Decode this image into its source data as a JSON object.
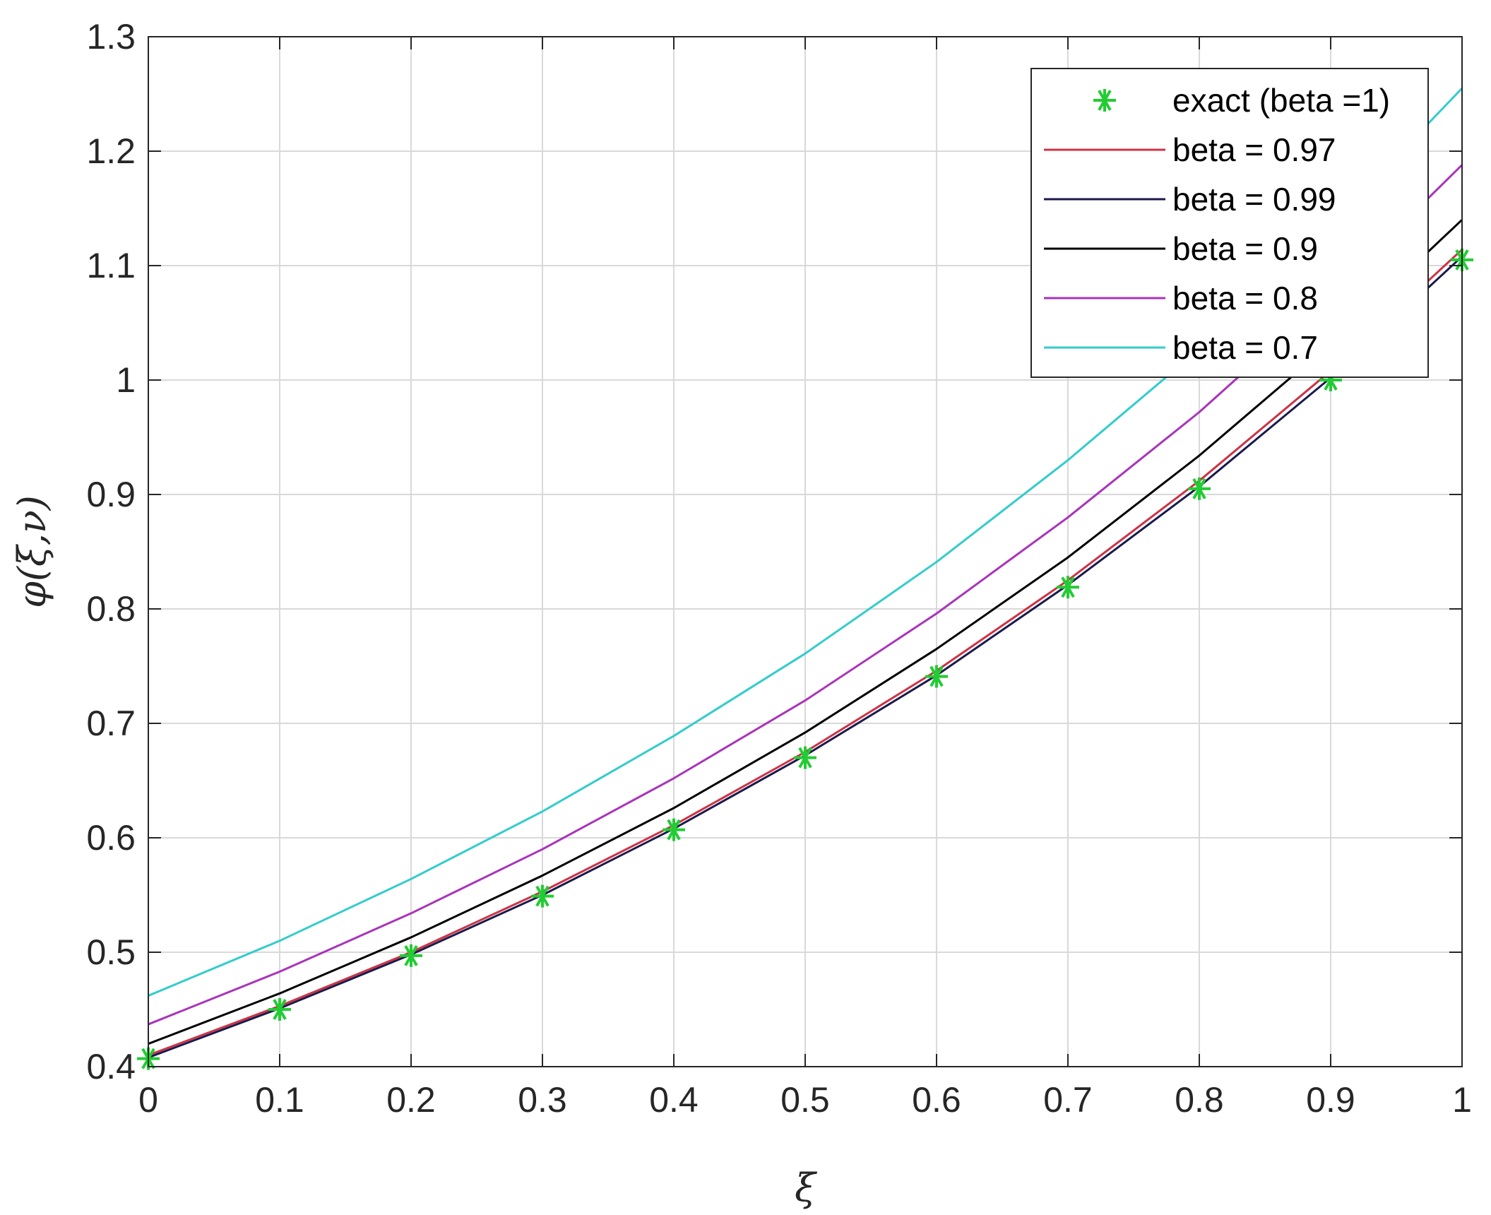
{
  "chart_data": {
    "type": "line",
    "title": "",
    "xlabel": "ξ",
    "ylabel": "φ(ξ,ν)",
    "xlim": [
      0,
      1
    ],
    "ylim": [
      0.4,
      1.3
    ],
    "grid": true,
    "legend_position": "top-right",
    "x_ticks": [
      "0",
      "0.1",
      "0.2",
      "0.3",
      "0.4",
      "0.5",
      "0.6",
      "0.7",
      "0.8",
      "0.9",
      "1"
    ],
    "y_ticks": [
      "0.4",
      "0.5",
      "0.6",
      "0.7",
      "0.8",
      "0.9",
      "1",
      "1.1",
      "1.2",
      "1.3"
    ],
    "x": [
      0,
      0.1,
      0.2,
      0.3,
      0.4,
      0.5,
      0.6,
      0.7,
      0.8,
      0.9,
      1.0
    ],
    "series": [
      {
        "name": "exact (beta =1)",
        "kind": "marker",
        "color": "#22cc33",
        "values": [
          0.407,
          0.45,
          0.497,
          0.549,
          0.607,
          0.67,
          0.741,
          0.819,
          0.905,
          1.0,
          1.105
        ]
      },
      {
        "name": "beta = 0.97",
        "kind": "line",
        "color": "#cc3344",
        "values": [
          0.41,
          0.453,
          0.5,
          0.553,
          0.611,
          0.675,
          0.746,
          0.825,
          0.912,
          1.008,
          1.114
        ]
      },
      {
        "name": "beta = 0.99",
        "kind": "line",
        "color": "#1a1a4d",
        "values": [
          0.408,
          0.451,
          0.498,
          0.55,
          0.608,
          0.672,
          0.742,
          0.821,
          0.907,
          1.002,
          1.108
        ]
      },
      {
        "name": "beta = 0.9",
        "kind": "line",
        "color": "#000000",
        "values": [
          0.42,
          0.464,
          0.513,
          0.567,
          0.626,
          0.692,
          0.765,
          0.845,
          0.934,
          1.032,
          1.14
        ]
      },
      {
        "name": "beta = 0.8",
        "kind": "line",
        "color": "#aa33bb",
        "values": [
          0.437,
          0.483,
          0.534,
          0.59,
          0.652,
          0.72,
          0.796,
          0.88,
          0.972,
          1.075,
          1.188
        ]
      },
      {
        "name": "beta = 0.7",
        "kind": "line",
        "color": "#33cccc",
        "values": [
          0.462,
          0.51,
          0.564,
          0.623,
          0.689,
          0.761,
          0.841,
          0.93,
          1.027,
          1.135,
          1.255
        ]
      }
    ]
  }
}
